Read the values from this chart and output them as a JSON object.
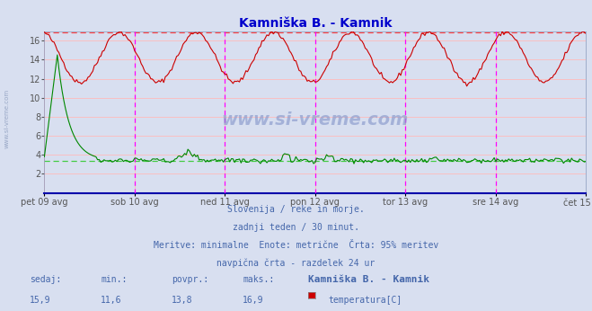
{
  "title": "Kamniška B. - Kamnik",
  "title_color": "#0000cc",
  "bg_color": "#d8dff0",
  "plot_bg_color": "#d8dff0",
  "x_labels": [
    "pet 09 avg",
    "sob 10 avg",
    "ned 11 avg",
    "pon 12 avg",
    "tor 13 avg",
    "sre 14 avg",
    "čet 15 avg"
  ],
  "n_points": 337,
  "ylim_min": 0,
  "ylim_max": 17,
  "yticks": [
    2,
    4,
    6,
    8,
    10,
    12,
    14,
    16
  ],
  "temp_min": 11.6,
  "temp_max": 16.9,
  "temp_avg": 13.8,
  "flow_min": 3.4,
  "flow_max": 14.5,
  "flow_avg": 4.2,
  "temp_current": 15.9,
  "flow_current": 3.6,
  "temp_color": "#cc0000",
  "flow_color": "#008800",
  "grid_h_color": "#ffbbbb",
  "grid_v_color": "#ffbbbb",
  "vline_color": "#ff00ff",
  "hline_temp_color": "#ff4444",
  "hline_flow_color": "#44cc44",
  "subtitle_lines": [
    "Slovenija / reke in morje.",
    "zadnji teden / 30 minut.",
    "Meritve: minimalne  Enote: metrične  Črta: 95% meritev",
    "navpična črta - razdelek 24 ur"
  ],
  "footer_color": "#4466aa",
  "watermark": "www.si-vreme.com",
  "temp_dashed_level": 16.9,
  "flow_dashed_level": 3.4,
  "left_label": "www.si-vreme.com"
}
